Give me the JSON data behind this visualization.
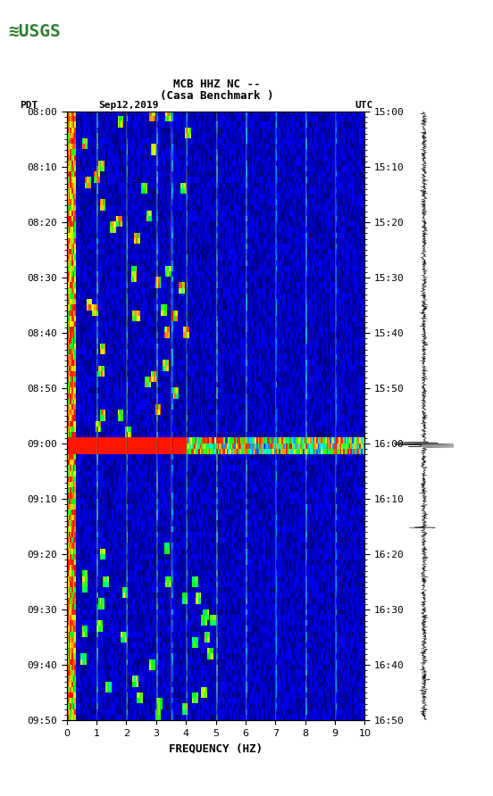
{
  "title_line1": "MCB HHZ NC --",
  "title_line2": "(Casa Benchmark )",
  "left_label": "PDT",
  "date_label": "Sep12,2019",
  "right_label": "UTC",
  "xlabel": "FREQUENCY (HZ)",
  "freq_min": 0,
  "freq_max": 10,
  "time_start_pdt": "08:00",
  "time_end_pdt": "09:50",
  "time_start_utc": "15:00",
  "time_end_utc": "16:50",
  "pdt_ticks": [
    "08:00",
    "08:10",
    "08:20",
    "08:30",
    "08:40",
    "08:50",
    "09:00",
    "09:10",
    "09:20",
    "09:30",
    "09:40",
    "09:50"
  ],
  "utc_ticks": [
    "15:00",
    "15:10",
    "15:20",
    "15:30",
    "15:40",
    "15:50",
    "16:00",
    "16:10",
    "16:20",
    "16:30",
    "16:40",
    "16:50"
  ],
  "freq_ticks": [
    0,
    1,
    2,
    3,
    4,
    5,
    6,
    7,
    8,
    9,
    10
  ],
  "vertical_lines_freq": [
    1.0,
    2.0,
    3.0,
    3.5,
    4.0,
    5.0,
    6.0,
    7.0,
    8.0,
    9.0
  ],
  "spectrogram_bg_color": "#00008B",
  "figure_bg_color": "#ffffff",
  "usgs_green": "#1a5c2a"
}
